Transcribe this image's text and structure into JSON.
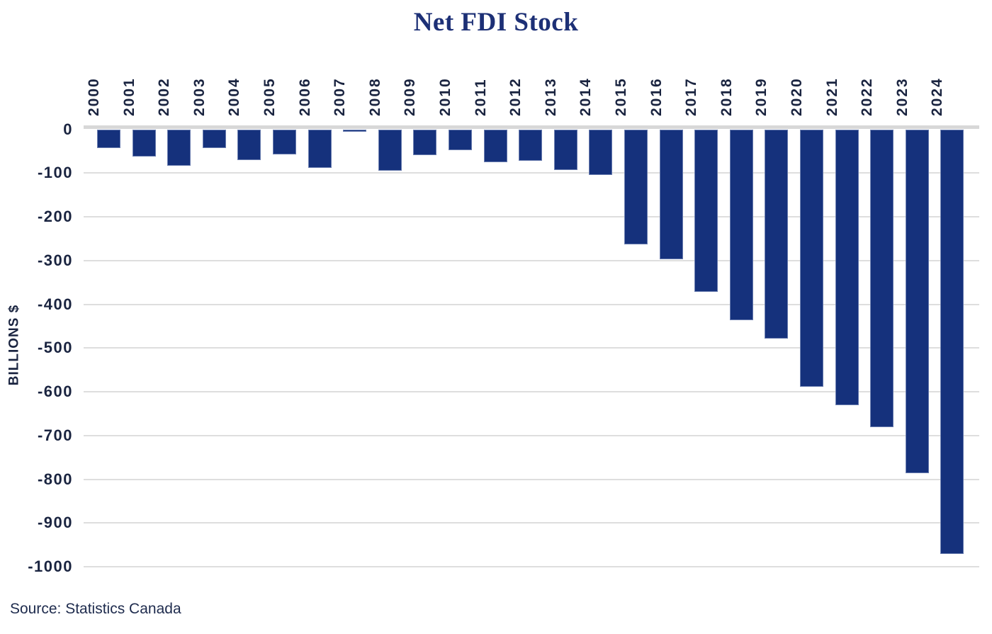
{
  "source": "Source: Statistics Canada",
  "colors": {
    "bar": "#15317C",
    "title_text": "#1d3076",
    "tick_text": "#1a2440",
    "gridline": "#dedede",
    "zero_line": "#d8d8d8",
    "background": "#ffffff"
  },
  "chart_data": {
    "type": "bar",
    "title": "Net FDI Stock",
    "xlabel": "",
    "ylabel": "BILLIONS $",
    "categories": [
      "2000",
      "2001",
      "2002",
      "2003",
      "2004",
      "2005",
      "2006",
      "2007",
      "2008",
      "2009",
      "2010",
      "2011",
      "2012",
      "2013",
      "2014",
      "2015",
      "2016",
      "2017",
      "2018",
      "2019",
      "2020",
      "2021",
      "2022",
      "2023",
      "2024"
    ],
    "values": [
      -42,
      -61,
      -83,
      -42,
      -69,
      -57,
      -87,
      -5,
      -94,
      -58,
      -47,
      -75,
      -72,
      -92,
      -103,
      -262,
      -296,
      -370,
      -435,
      -477,
      -588,
      -629,
      -680,
      -785,
      -970
    ],
    "ylim": [
      -1000,
      0
    ],
    "yticks": [
      0,
      -100,
      -200,
      -300,
      -400,
      -500,
      -600,
      -700,
      -800,
      -900,
      -1000
    ],
    "grid": true,
    "legend": "none",
    "bar_color": "#15317C",
    "source": "Source: Statistics Canada"
  }
}
